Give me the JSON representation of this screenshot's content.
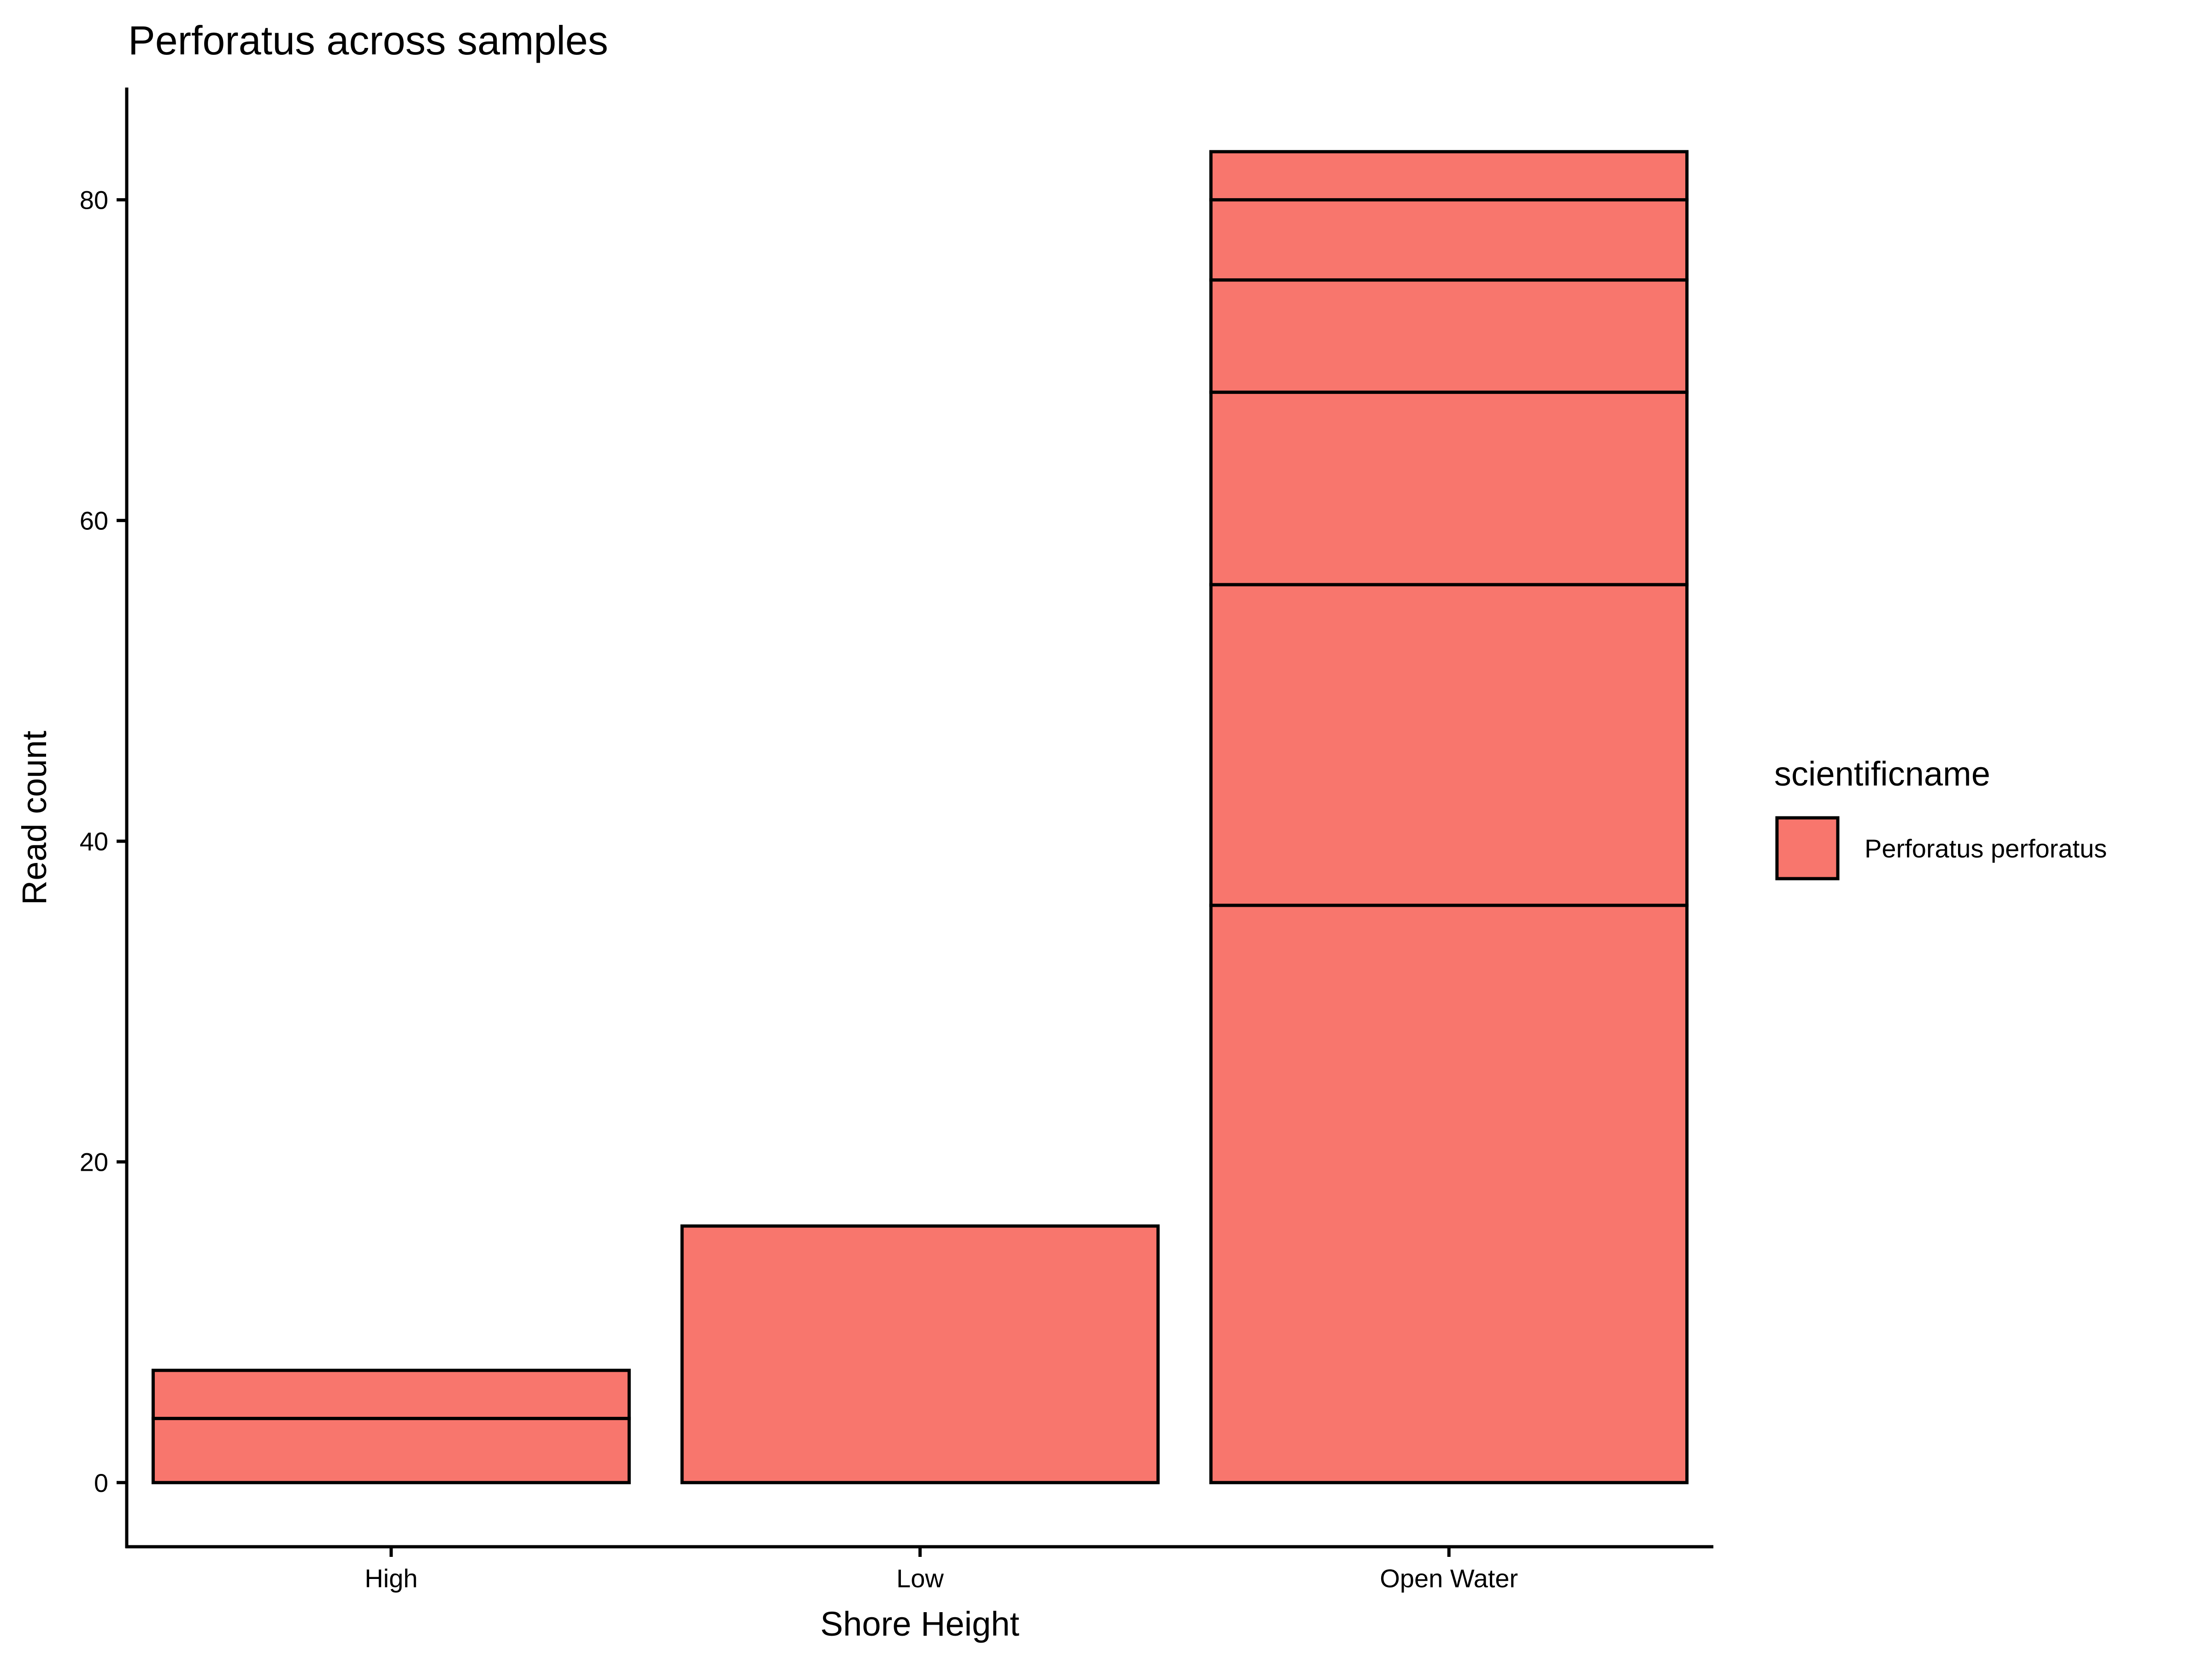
{
  "chart_data": {
    "type": "bar",
    "title": "Perforatus across samples",
    "xlabel": "Shore Height",
    "ylabel": "Read count",
    "categories": [
      "High",
      "Low",
      "Open Water"
    ],
    "stacked_segments": [
      [
        4,
        3
      ],
      [
        16
      ],
      [
        36,
        20,
        12,
        7,
        5,
        3
      ]
    ],
    "totals": [
      7,
      16,
      83
    ],
    "ylim": [
      -4,
      87
    ],
    "yticks": [
      0,
      20,
      40,
      60,
      80
    ],
    "grid": false,
    "legend": {
      "title": "scientificname",
      "position": "right",
      "entries": [
        {
          "name": "Perforatus perforatus",
          "color": "#F8766D"
        }
      ]
    },
    "colors": {
      "fill": "#F8766D",
      "outline": "#000000",
      "axis": "#000000"
    }
  }
}
